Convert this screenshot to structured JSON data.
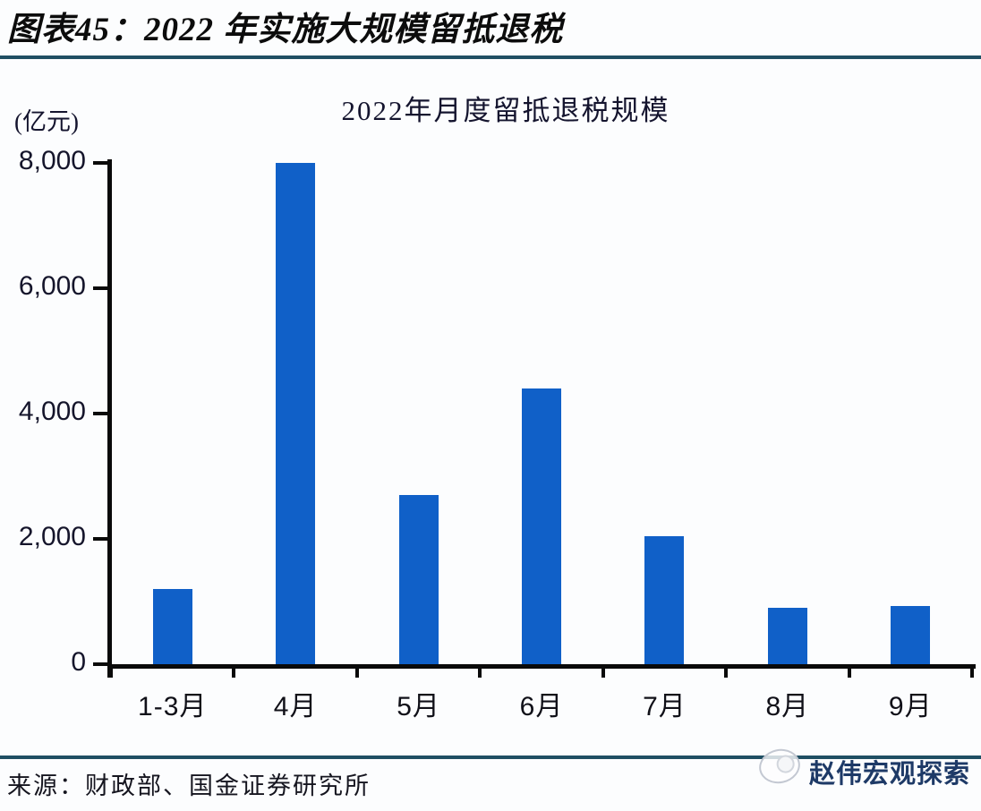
{
  "figure": {
    "title": "图表45：2022 年实施大规模留抵退税",
    "source": "来源：财政部、国金证券研究所",
    "watermark_text": "赵伟宏观探索"
  },
  "colors": {
    "bar": "#1060c8",
    "rule": "#1f4f63",
    "axis": "#0a0a0a",
    "watermark_text": "#1e3a67"
  },
  "chart_data": {
    "type": "bar",
    "title": "2022年月度留抵退税规模",
    "unit_label": "(亿元)",
    "xlabel": "",
    "ylabel": "亿元",
    "categories": [
      "1-3月",
      "4月",
      "5月",
      "6月",
      "7月",
      "8月",
      "9月"
    ],
    "values": [
      1200,
      8000,
      2700,
      4400,
      2050,
      900,
      930
    ],
    "ylim": [
      0,
      8000
    ],
    "yticks": [
      0,
      2000,
      4000,
      6000,
      8000
    ],
    "ytick_labels": [
      "0",
      "2,000",
      "4,000",
      "6,000",
      "8,000"
    ],
    "grid": false,
    "legend_position": "none"
  }
}
